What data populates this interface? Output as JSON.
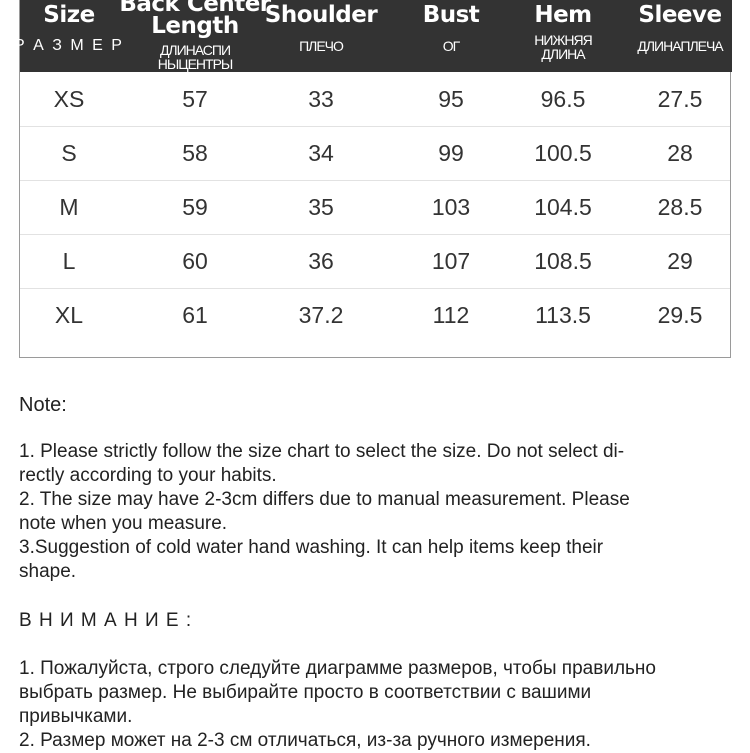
{
  "header": [
    {
      "en": "Size",
      "ru": [
        "Р А З М Е Р"
      ]
    },
    {
      "en": "Back Center Length",
      "en_lines": [
        "Back Center",
        "Length"
      ],
      "ru": [
        "ДЛИНАСПИ",
        "НЫЦЕНТРЫ"
      ]
    },
    {
      "en": "Shoulder",
      "ru": [
        "ПЛЕЧО"
      ]
    },
    {
      "en": "Bust",
      "ru": [
        "ОГ"
      ]
    },
    {
      "en": "Hem",
      "ru": [
        "НИЖНЯЯ",
        "ДЛИНА"
      ]
    },
    {
      "en": "Sleeve",
      "ru": [
        "ДЛИНАПЛЕЧА"
      ]
    }
  ],
  "rows": [
    [
      "XS",
      "57",
      "33",
      "95",
      "96.5",
      "27.5"
    ],
    [
      "S",
      "58",
      "34",
      "99",
      "100.5",
      "28"
    ],
    [
      "M",
      "59",
      "35",
      "103",
      "104.5",
      "28.5"
    ],
    [
      "L",
      "60",
      "36",
      "107",
      "108.5",
      "29"
    ],
    [
      "XL",
      "61",
      "37.2",
      "112",
      "113.5",
      "29.5"
    ]
  ],
  "note": {
    "title": "Note:",
    "lines": [
      "1. Please strictly follow the size chart  to select the size. Do not select di-",
      "rectly according to your habits.",
      "2. The size may have 2-3cm differs due to manual measurement. Please",
      "note when you measure.",
      "3.Suggestion of cold water hand washing. It can help items keep their",
      "shape."
    ]
  },
  "note_ru": {
    "title": "В Н И М А Н И Е :",
    "lines": [
      "1. Пожалуйста, строго следуйте диаграмме размеров, чтобы правильно",
      "выбрать размер. Не выбирайте просто в соответствии с вашими",
      "привычками.",
      "2. Размер может на 2-3 см отличаться, из-за ручного измерения."
    ]
  },
  "colors": {
    "header_bg": "#333333",
    "header_text": "#ffffff"
  }
}
